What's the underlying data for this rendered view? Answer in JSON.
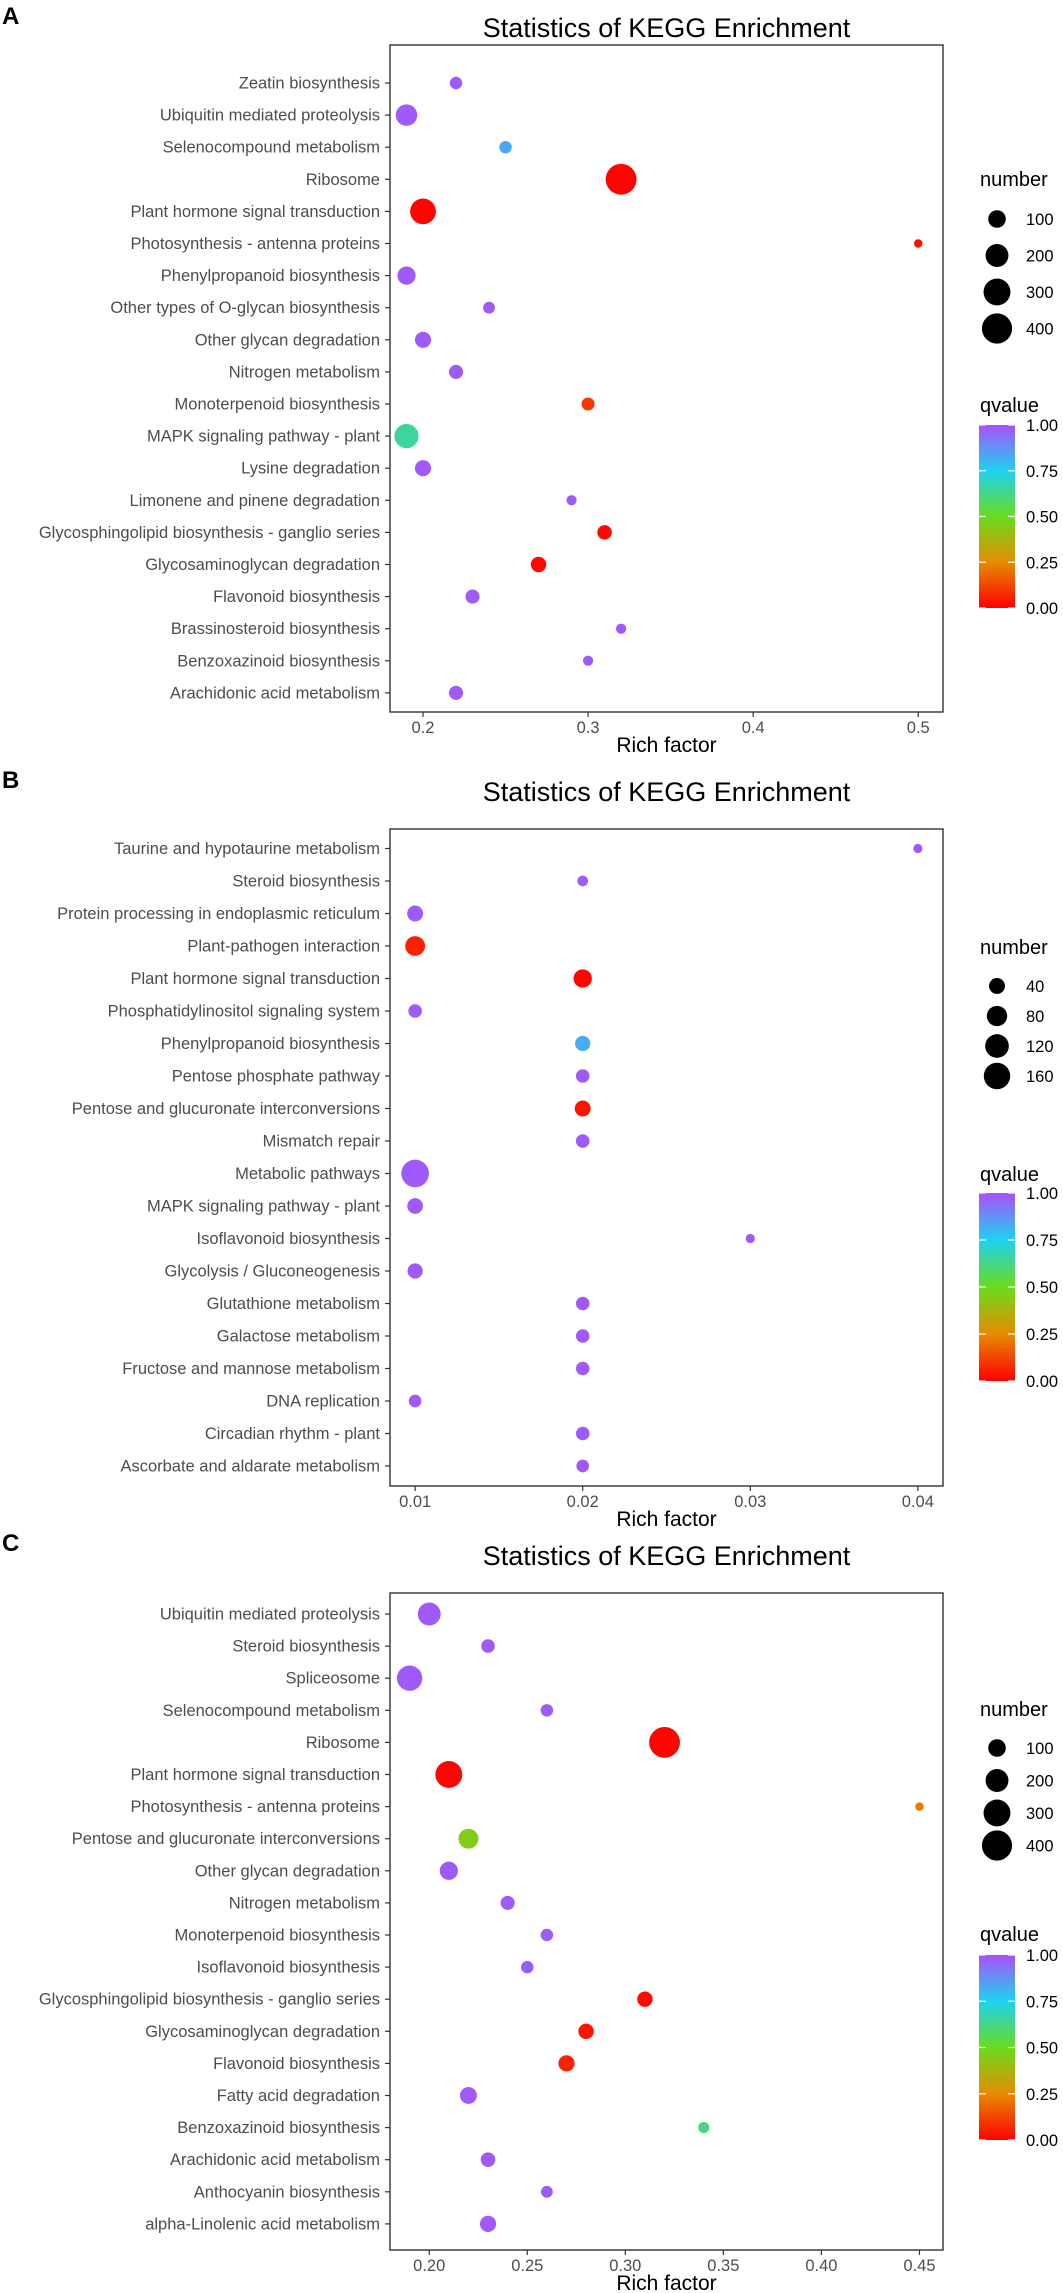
{
  "chart_data": [
    {
      "panel": "A",
      "type": "scatter",
      "title": "Statistics of KEGG Enrichment",
      "xlabel": "Rich factor",
      "ylabel": "",
      "xlim": [
        0.18,
        0.515
      ],
      "xticks": [
        0.2,
        0.3,
        0.4,
        0.5
      ],
      "xtick_labels": [
        "0.2",
        "0.3",
        "0.4",
        "0.5"
      ],
      "size_legend": {
        "title": "number",
        "values": [
          100,
          200,
          300,
          400
        ],
        "labels": [
          "100",
          "200",
          "300",
          "400"
        ],
        "domain": [
          15,
          460
        ]
      },
      "color_legend": {
        "title": "qvalue",
        "stops": [
          0.0,
          0.25,
          0.5,
          0.75,
          1.0
        ],
        "labels": [
          "0.00",
          "0.25",
          "0.50",
          "0.75",
          "1.00"
        ]
      },
      "points": [
        {
          "term": "Zeatin biosynthesis",
          "rich_factor": 0.22,
          "number": 40,
          "qvalue": 0.98
        },
        {
          "term": "Ubiquitin mediated proteolysis",
          "rich_factor": 0.19,
          "number": 170,
          "qvalue": 0.98
        },
        {
          "term": "Selenocompound metabolism",
          "rich_factor": 0.25,
          "number": 40,
          "qvalue": 0.83
        },
        {
          "term": "Ribosome",
          "rich_factor": 0.32,
          "number": 420,
          "qvalue": 0.01
        },
        {
          "term": "Plant hormone signal transduction",
          "rich_factor": 0.2,
          "number": 270,
          "qvalue": 0.01
        },
        {
          "term": "Photosynthesis - antenna proteins",
          "rich_factor": 0.5,
          "number": 18,
          "qvalue": 0.03
        },
        {
          "term": "Phenylpropanoid biosynthesis",
          "rich_factor": 0.19,
          "number": 110,
          "qvalue": 0.98
        },
        {
          "term": "Other types of O-glycan biosynthesis",
          "rich_factor": 0.24,
          "number": 35,
          "qvalue": 0.98
        },
        {
          "term": "Other glycan degradation",
          "rich_factor": 0.2,
          "number": 80,
          "qvalue": 0.98
        },
        {
          "term": "Nitrogen metabolism",
          "rich_factor": 0.22,
          "number": 55,
          "qvalue": 0.98
        },
        {
          "term": "Monoterpenoid biosynthesis",
          "rich_factor": 0.3,
          "number": 45,
          "qvalue": 0.1
        },
        {
          "term": "MAPK signaling pathway - plant",
          "rich_factor": 0.19,
          "number": 230,
          "qvalue": 0.65
        },
        {
          "term": "Lysine degradation",
          "rich_factor": 0.2,
          "number": 80,
          "qvalue": 0.98
        },
        {
          "term": "Limonene and pinene degradation",
          "rich_factor": 0.29,
          "number": 25,
          "qvalue": 0.98
        },
        {
          "term": "Glycosphingolipid biosynthesis - ganglio series",
          "rich_factor": 0.31,
          "number": 60,
          "qvalue": 0.02
        },
        {
          "term": "Glycosaminoglycan degradation",
          "rich_factor": 0.27,
          "number": 70,
          "qvalue": 0.02
        },
        {
          "term": "Flavonoid biosynthesis",
          "rich_factor": 0.23,
          "number": 55,
          "qvalue": 0.98
        },
        {
          "term": "Brassinosteroid biosynthesis",
          "rich_factor": 0.32,
          "number": 25,
          "qvalue": 0.98
        },
        {
          "term": "Benzoxazinoid biosynthesis",
          "rich_factor": 0.3,
          "number": 25,
          "qvalue": 0.98
        },
        {
          "term": "Arachidonic acid metabolism",
          "rich_factor": 0.22,
          "number": 55,
          "qvalue": 0.98
        }
      ]
    },
    {
      "panel": "B",
      "type": "scatter",
      "title": "Statistics of KEGG Enrichment",
      "xlabel": "Rich factor",
      "ylabel": "",
      "xlim": [
        0.0085,
        0.0415
      ],
      "xticks": [
        0.01,
        0.02,
        0.03,
        0.04
      ],
      "xtick_labels": [
        "0.01",
        "0.02",
        "0.03",
        "0.04"
      ],
      "size_legend": {
        "title": "number",
        "values": [
          40,
          80,
          120,
          160
        ],
        "labels": [
          "40",
          "80",
          "120",
          "160"
        ],
        "domain": [
          5,
          185
        ]
      },
      "color_legend": {
        "title": "qvalue",
        "stops": [
          0.0,
          0.25,
          0.5,
          0.75,
          1.0
        ],
        "labels": [
          "0.00",
          "0.25",
          "0.50",
          "0.75",
          "1.00"
        ]
      },
      "points": [
        {
          "term": "Taurine and hypotaurine metabolism",
          "rich_factor": 0.04,
          "number": 8,
          "qvalue": 0.98
        },
        {
          "term": "Steroid biosynthesis",
          "rich_factor": 0.02,
          "number": 12,
          "qvalue": 0.98
        },
        {
          "term": "Protein processing in endoplasmic reticulum",
          "rich_factor": 0.01,
          "number": 40,
          "qvalue": 0.98
        },
        {
          "term": "Plant-pathogen interaction",
          "rich_factor": 0.01,
          "number": 75,
          "qvalue": 0.06
        },
        {
          "term": "Plant hormone signal transduction",
          "rich_factor": 0.02,
          "number": 60,
          "qvalue": 0.01
        },
        {
          "term": "Phosphatidylinositol signaling system",
          "rich_factor": 0.01,
          "number": 25,
          "qvalue": 0.98
        },
        {
          "term": "Phenylpropanoid biosynthesis",
          "rich_factor": 0.02,
          "number": 35,
          "qvalue": 0.82
        },
        {
          "term": "Pentose phosphate pathway",
          "rich_factor": 0.02,
          "number": 25,
          "qvalue": 0.98
        },
        {
          "term": "Pentose and glucuronate interconversions",
          "rich_factor": 0.02,
          "number": 40,
          "qvalue": 0.04
        },
        {
          "term": "Mismatch repair",
          "rich_factor": 0.02,
          "number": 25,
          "qvalue": 0.98
        },
        {
          "term": "Metabolic pathways",
          "rich_factor": 0.01,
          "number": 180,
          "qvalue": 0.98
        },
        {
          "term": "MAPK signaling pathway - plant",
          "rich_factor": 0.01,
          "number": 38,
          "qvalue": 0.98
        },
        {
          "term": "Isoflavonoid biosynthesis",
          "rich_factor": 0.03,
          "number": 8,
          "qvalue": 0.98
        },
        {
          "term": "Glycolysis / Gluconeogenesis",
          "rich_factor": 0.01,
          "number": 35,
          "qvalue": 0.98
        },
        {
          "term": "Glutathione metabolism",
          "rich_factor": 0.02,
          "number": 25,
          "qvalue": 0.98
        },
        {
          "term": "Galactose metabolism",
          "rich_factor": 0.02,
          "number": 25,
          "qvalue": 0.98
        },
        {
          "term": "Fructose and mannose metabolism",
          "rich_factor": 0.02,
          "number": 25,
          "qvalue": 0.98
        },
        {
          "term": "DNA replication",
          "rich_factor": 0.01,
          "number": 20,
          "qvalue": 0.98
        },
        {
          "term": "Circadian rhythm - plant",
          "rich_factor": 0.02,
          "number": 25,
          "qvalue": 0.98
        },
        {
          "term": "Ascorbate and aldarate metabolism",
          "rich_factor": 0.02,
          "number": 20,
          "qvalue": 0.98
        }
      ]
    },
    {
      "panel": "C",
      "type": "scatter",
      "title": "Statistics of KEGG Enrichment",
      "xlabel": "Rich factor",
      "ylabel": "",
      "xlim": [
        0.18,
        0.462
      ],
      "xticks": [
        0.2,
        0.25,
        0.3,
        0.35,
        0.4,
        0.45
      ],
      "xtick_labels": [
        "0.20",
        "0.25",
        "0.30",
        "0.35",
        "0.40",
        "0.45"
      ],
      "size_legend": {
        "title": "number",
        "values": [
          100,
          200,
          300,
          400
        ],
        "labels": [
          "100",
          "200",
          "300",
          "400"
        ],
        "domain": [
          15,
          460
        ]
      },
      "color_legend": {
        "title": "qvalue",
        "stops": [
          0.0,
          0.25,
          0.5,
          0.75,
          1.0
        ],
        "labels": [
          "0.00",
          "0.25",
          "0.50",
          "0.75",
          "1.00"
        ]
      },
      "points": [
        {
          "term": "Ubiquitin mediated proteolysis",
          "rich_factor": 0.2,
          "number": 200,
          "qvalue": 0.98
        },
        {
          "term": "Steroid biosynthesis",
          "rich_factor": 0.23,
          "number": 50,
          "qvalue": 0.98
        },
        {
          "term": "Spliceosome",
          "rich_factor": 0.19,
          "number": 260,
          "qvalue": 0.98
        },
        {
          "term": "Selenocompound metabolism",
          "rich_factor": 0.26,
          "number": 40,
          "qvalue": 0.98
        },
        {
          "term": "Ribosome",
          "rich_factor": 0.32,
          "number": 420,
          "qvalue": 0.01
        },
        {
          "term": "Plant hormone signal transduction",
          "rich_factor": 0.21,
          "number": 300,
          "qvalue": 0.01
        },
        {
          "term": "Photosynthesis - antenna proteins",
          "rich_factor": 0.45,
          "number": 18,
          "qvalue": 0.22
        },
        {
          "term": "Pentose and glucuronate interconversions",
          "rich_factor": 0.22,
          "number": 140,
          "qvalue": 0.45
        },
        {
          "term": "Other glycan degradation",
          "rich_factor": 0.21,
          "number": 110,
          "qvalue": 0.98
        },
        {
          "term": "Nitrogen metabolism",
          "rich_factor": 0.24,
          "number": 55,
          "qvalue": 0.98
        },
        {
          "term": "Monoterpenoid biosynthesis",
          "rich_factor": 0.26,
          "number": 40,
          "qvalue": 0.98
        },
        {
          "term": "Isoflavonoid biosynthesis",
          "rich_factor": 0.25,
          "number": 40,
          "qvalue": 0.98
        },
        {
          "term": "Glycosphingolipid biosynthesis - ganglio series",
          "rich_factor": 0.31,
          "number": 70,
          "qvalue": 0.02
        },
        {
          "term": "Glycosaminoglycan degradation",
          "rich_factor": 0.28,
          "number": 70,
          "qvalue": 0.04
        },
        {
          "term": "Flavonoid biosynthesis",
          "rich_factor": 0.27,
          "number": 80,
          "qvalue": 0.06
        },
        {
          "term": "Fatty acid degradation",
          "rich_factor": 0.22,
          "number": 90,
          "qvalue": 0.98
        },
        {
          "term": "Benzoxazinoid biosynthesis",
          "rich_factor": 0.34,
          "number": 30,
          "qvalue": 0.62
        },
        {
          "term": "Arachidonic acid metabolism",
          "rich_factor": 0.23,
          "number": 60,
          "qvalue": 0.98
        },
        {
          "term": "Anthocyanin biosynthesis",
          "rich_factor": 0.26,
          "number": 35,
          "qvalue": 0.98
        },
        {
          "term": "alpha-Linolenic acid metabolism",
          "rich_factor": 0.23,
          "number": 80,
          "qvalue": 0.98
        }
      ]
    }
  ]
}
